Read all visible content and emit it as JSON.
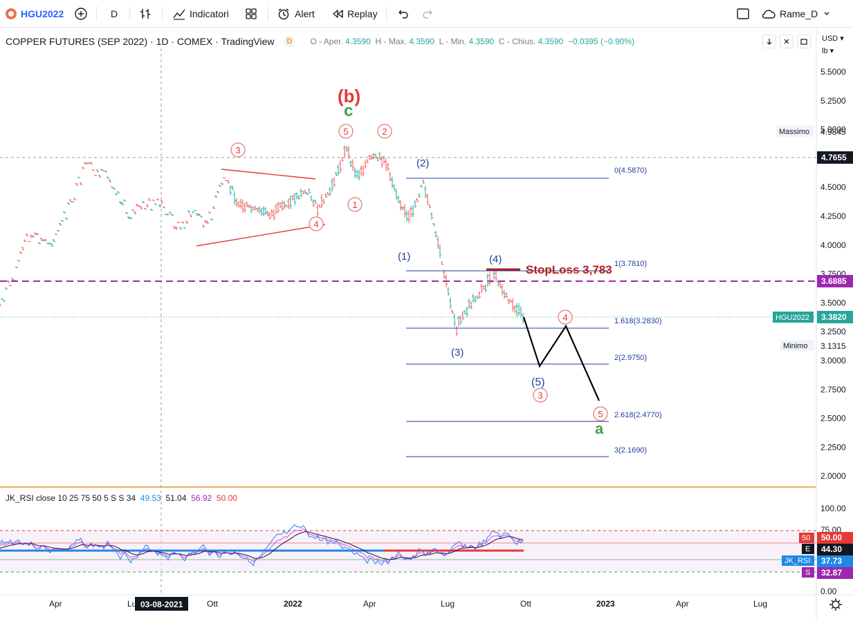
{
  "toolbar": {
    "symbol": "HGU2022",
    "interval": "D",
    "indicators_label": "Indicatori",
    "alert_label": "Alert",
    "replay_label": "Replay",
    "layout_name": "Rame_D"
  },
  "legend": {
    "title": "COPPER FUTURES (SEP 2022) · 1D · COMEX · TradingView",
    "badge": "D",
    "o_label": "O - Aper.",
    "o": "4.3590",
    "h_label": "H - Max.",
    "h": "4.3590",
    "l_label": "L - Min.",
    "l": "4.3590",
    "c_label": "C - Chius.",
    "c": "4.3590",
    "change": "−0.0395 (−0.90%)"
  },
  "scale": {
    "currency": "USD",
    "unit": "lb"
  },
  "price_axis": [
    "5.5000",
    "5.2500",
    "5.0000",
    "4.7500",
    "4.5000",
    "4.2500",
    "4.0000",
    "3.7500",
    "3.5000",
    "3.2500",
    "3.0000",
    "2.7500",
    "2.5000",
    "2.2500",
    "2.0000"
  ],
  "price_badges": {
    "massimo_label": "Massimo",
    "massimo": "4.9845",
    "high_line": "4.7655",
    "purple_line": "3.6885",
    "symbol_label": "HGU2022",
    "last": "3.3820",
    "minimo_label": "Minimo",
    "minimo": "3.1315"
  },
  "fib_levels": [
    "0(4.5870)",
    "1(3.7810)",
    "1.618(3.2830)",
    "2(2.9750)",
    "2.618(2.4770)",
    "3(2.1690)"
  ],
  "annotations": {
    "b_label": "(b)",
    "c_label": "c",
    "a_label": "a",
    "stoploss": "StopLoss 3,783",
    "w1": "(1)",
    "w2": "(2)",
    "w3": "(3)",
    "w4": "(4)",
    "w5": "(5)",
    "c1": "1",
    "c2": "2",
    "c3": "3",
    "c4": "4",
    "c5": "5"
  },
  "rsi": {
    "label": "JK_RSI close 10 25 75 50 5 S S 34",
    "v1": "49.53",
    "v2": "51.04",
    "v3": "56.92",
    "v4": "50.00",
    "axis": [
      "100.00",
      "75.00",
      "25.00",
      "0.00"
    ],
    "badges": {
      "b50_tag": "50",
      "b50": "50.00",
      "e_tag": "E",
      "e": "44.30",
      "name": "JK_RSI",
      "value": "37.73",
      "s_tag": "S",
      "s": "32.87"
    }
  },
  "time_axis": [
    "Apr",
    "Lu",
    "03-08-2021",
    "Ott",
    "2022",
    "Apr",
    "Lug",
    "Ott",
    "2023",
    "Apr",
    "Lug"
  ],
  "colors": {
    "accent": "#2962ff",
    "wave_red": "#e53935",
    "wave_green": "#43a047",
    "fib_blue": "#1e3ea0",
    "purple": "#9c27b0",
    "stop_red": "#b71c1c"
  }
}
